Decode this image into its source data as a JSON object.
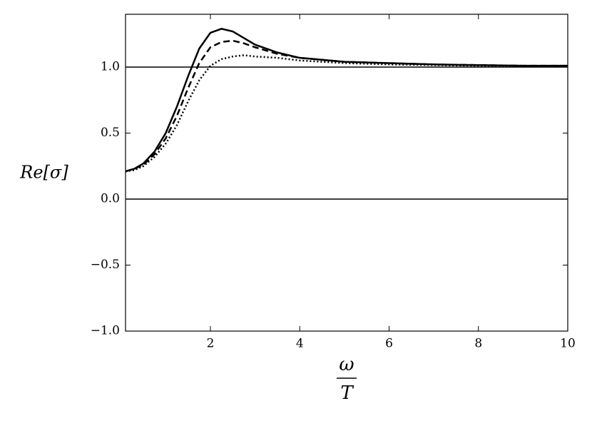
{
  "chart_data": {
    "type": "line",
    "ylabel": "Re[σ]",
    "xlabel": {
      "numerator": "ω",
      "denominator": "T"
    },
    "x": [
      0.1,
      0.3,
      0.5,
      0.75,
      1.0,
      1.25,
      1.5,
      1.75,
      2.0,
      2.25,
      2.5,
      2.75,
      3.0,
      3.5,
      4,
      5,
      6,
      7,
      8,
      9,
      10
    ],
    "series": [
      {
        "color": "#000000",
        "dash": "solid",
        "values": [
          0.21,
          0.23,
          0.27,
          0.36,
          0.5,
          0.7,
          0.93,
          1.14,
          1.26,
          1.29,
          1.27,
          1.22,
          1.17,
          1.11,
          1.07,
          1.04,
          1.03,
          1.02,
          1.015,
          1.01,
          1.01
        ]
      },
      {
        "color": "#000000",
        "dash": "dashed",
        "values": [
          0.21,
          0.23,
          0.26,
          0.34,
          0.46,
          0.63,
          0.84,
          1.03,
          1.15,
          1.19,
          1.2,
          1.18,
          1.15,
          1.1,
          1.07,
          1.04,
          1.03,
          1.02,
          1.015,
          1.01,
          1.01
        ]
      },
      {
        "color": "#000000",
        "dash": "dotted",
        "values": [
          0.21,
          0.22,
          0.25,
          0.32,
          0.42,
          0.56,
          0.74,
          0.9,
          1.01,
          1.06,
          1.08,
          1.09,
          1.08,
          1.07,
          1.05,
          1.03,
          1.02,
          1.015,
          1.01,
          1.01,
          1.005
        ]
      }
    ],
    "hlines": [
      0,
      1
    ],
    "xlim": [
      0.1,
      10
    ],
    "xticks": [
      2,
      4,
      6,
      8,
      10
    ],
    "ylim": [
      -1,
      1.4
    ],
    "yticks": [
      {
        "value": -1,
        "label": "−1.0"
      },
      {
        "value": -0.5,
        "label": "−0.5"
      },
      {
        "value": 0,
        "label": "0.0"
      },
      0.5,
      {
        "value": 1,
        "label": "1.0"
      }
    ],
    "grid": false
  }
}
